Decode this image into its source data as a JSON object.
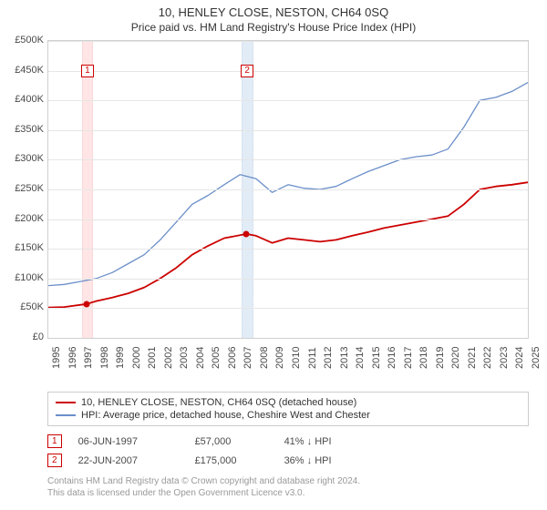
{
  "title": "10, HENLEY CLOSE, NESTON, CH64 0SQ",
  "subtitle": "Price paid vs. HM Land Registry's House Price Index (HPI)",
  "chart": {
    "type": "line",
    "background_color": "#ffffff",
    "grid_color": "#e6e6e6",
    "border_color": "#d0d0d0",
    "y_axis": {
      "min": 0,
      "max": 500000,
      "tick_step": 50000,
      "labels": [
        "£0",
        "£50K",
        "£100K",
        "£150K",
        "£200K",
        "£250K",
        "£300K",
        "£350K",
        "£400K",
        "£450K",
        "£500K"
      ],
      "label_fontsize": 11,
      "label_color": "#4a4a4a"
    },
    "x_axis": {
      "min": 1995,
      "max": 2025,
      "tick_step": 1,
      "labels": [
        "1995",
        "1996",
        "1997",
        "1998",
        "1999",
        "2000",
        "2001",
        "2002",
        "2003",
        "2004",
        "2005",
        "2006",
        "2007",
        "2008",
        "2009",
        "2010",
        "2011",
        "2012",
        "2013",
        "2014",
        "2015",
        "2016",
        "2017",
        "2018",
        "2019",
        "2020",
        "2021",
        "2022",
        "2023",
        "2024",
        "2025"
      ],
      "label_fontsize": 11,
      "label_color": "#4a4a4a",
      "rotation": -90
    },
    "vertical_bands": [
      {
        "x": 1997.4,
        "width_years": 0.6,
        "color": "#ffe5e5",
        "border_color": "#f5cccc"
      },
      {
        "x": 2007.4,
        "width_years": 0.6,
        "color": "#e2ecf6",
        "border_color": "#cddbea"
      }
    ],
    "markers": [
      {
        "label": "1",
        "x": 1997.4,
        "y_top": 450000,
        "color": "#cc0000"
      },
      {
        "label": "2",
        "x": 2007.4,
        "y_top": 450000,
        "color": "#cc0000"
      }
    ],
    "series": [
      {
        "name": "property_price",
        "label": "10, HENLEY CLOSE, NESTON, CH64 0SQ (detached house)",
        "color": "#cc0000",
        "line_width": 1.8,
        "data": [
          [
            1995,
            51000
          ],
          [
            1996,
            52000
          ],
          [
            1997.4,
            57000
          ],
          [
            1998,
            62000
          ],
          [
            1999,
            68000
          ],
          [
            2000,
            75000
          ],
          [
            2001,
            85000
          ],
          [
            2002,
            100000
          ],
          [
            2003,
            118000
          ],
          [
            2004,
            140000
          ],
          [
            2005,
            155000
          ],
          [
            2006,
            168000
          ],
          [
            2007.4,
            175000
          ],
          [
            2008,
            172000
          ],
          [
            2009,
            160000
          ],
          [
            2010,
            168000
          ],
          [
            2011,
            165000
          ],
          [
            2012,
            162000
          ],
          [
            2013,
            165000
          ],
          [
            2014,
            172000
          ],
          [
            2015,
            178000
          ],
          [
            2016,
            185000
          ],
          [
            2017,
            190000
          ],
          [
            2018,
            195000
          ],
          [
            2019,
            200000
          ],
          [
            2020,
            205000
          ],
          [
            2021,
            225000
          ],
          [
            2022,
            250000
          ],
          [
            2023,
            255000
          ],
          [
            2024,
            258000
          ],
          [
            2025,
            262000
          ]
        ],
        "points": [
          {
            "x": 1997.4,
            "y": 57000
          },
          {
            "x": 2007.4,
            "y": 175000
          }
        ]
      },
      {
        "name": "hpi",
        "label": "HPI: Average price, detached house, Cheshire West and Chester",
        "color": "#6b8fc9",
        "line_width": 1.3,
        "data": [
          [
            1995,
            88000
          ],
          [
            1996,
            90000
          ],
          [
            1997,
            95000
          ],
          [
            1998,
            100000
          ],
          [
            1999,
            110000
          ],
          [
            2000,
            125000
          ],
          [
            2001,
            140000
          ],
          [
            2002,
            165000
          ],
          [
            2003,
            195000
          ],
          [
            2004,
            225000
          ],
          [
            2005,
            240000
          ],
          [
            2006,
            258000
          ],
          [
            2007,
            275000
          ],
          [
            2008,
            268000
          ],
          [
            2009,
            245000
          ],
          [
            2010,
            258000
          ],
          [
            2011,
            252000
          ],
          [
            2012,
            250000
          ],
          [
            2013,
            255000
          ],
          [
            2014,
            268000
          ],
          [
            2015,
            280000
          ],
          [
            2016,
            290000
          ],
          [
            2017,
            300000
          ],
          [
            2018,
            305000
          ],
          [
            2019,
            308000
          ],
          [
            2020,
            318000
          ],
          [
            2021,
            355000
          ],
          [
            2022,
            400000
          ],
          [
            2023,
            405000
          ],
          [
            2024,
            415000
          ],
          [
            2025,
            430000
          ]
        ]
      }
    ]
  },
  "legend": {
    "border_color": "#cccccc",
    "fontsize": 11,
    "items": [
      {
        "color": "#cc0000",
        "label": "10, HENLEY CLOSE, NESTON, CH64 0SQ (detached house)"
      },
      {
        "color": "#6b8fc9",
        "label": "HPI: Average price, detached house, Cheshire West and Chester"
      }
    ]
  },
  "events": {
    "badge_color": "#cc0000",
    "items": [
      {
        "badge": "1",
        "date": "06-JUN-1997",
        "price": "£57,000",
        "delta": "41% ↓ HPI"
      },
      {
        "badge": "2",
        "date": "22-JUN-2007",
        "price": "£175,000",
        "delta": "36% ↓ HPI"
      }
    ]
  },
  "footer": {
    "line1": "Contains HM Land Registry data © Crown copyright and database right 2024.",
    "line2": "This data is licensed under the Open Government Licence v3.0."
  }
}
